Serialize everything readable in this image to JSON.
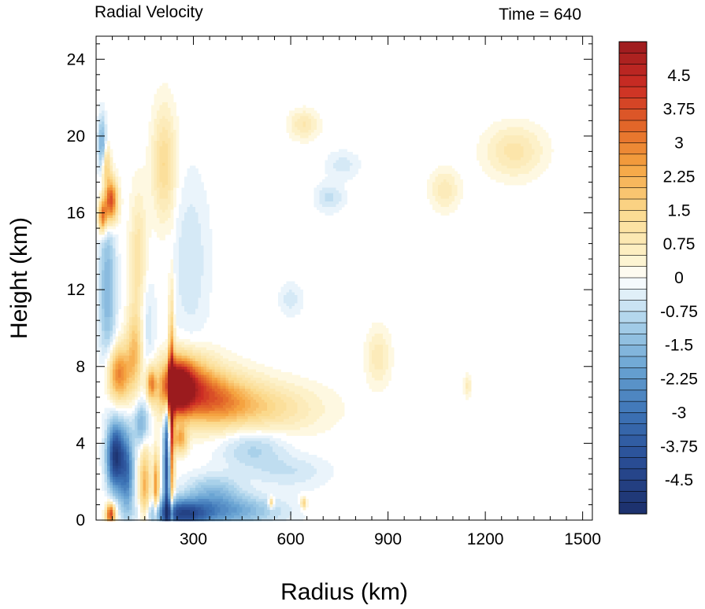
{
  "chart_data": {
    "type": "heatmap",
    "title_left": "Radial Velocity",
    "title_right": "Time = 640",
    "xlabel": "Radius (km)",
    "ylabel": "Height (km)",
    "x_ticks": [
      300,
      600,
      900,
      1200,
      1500
    ],
    "y_ticks": [
      0,
      4,
      8,
      12,
      16,
      20,
      24
    ],
    "xlim": [
      0,
      1530
    ],
    "ylim": [
      0,
      25.2
    ],
    "colorbar": {
      "min": -5.25,
      "max": 5.25,
      "step": 0.25,
      "tick_labels": [
        "4.5",
        "3.75",
        "3",
        "2.25",
        "1.5",
        "0.75",
        "0",
        "-0.75",
        "-1.5",
        "-2.25",
        "-3",
        "-3.75",
        "-4.5"
      ],
      "tick_values": [
        4.5,
        3.75,
        3,
        2.25,
        1.5,
        0.75,
        0,
        -0.75,
        -1.5,
        -2.25,
        -3,
        -3.75,
        -4.5
      ],
      "colors": [
        "#1b2f6a",
        "#2a4f97",
        "#3d74b6",
        "#6aa4d3",
        "#a9d1ea",
        "#deeef8",
        "#ffffff",
        "#fdf3cf",
        "#fbd98c",
        "#f5a340",
        "#e56e2a",
        "#cc2d24",
        "#9b1b1e"
      ],
      "color_stops": [
        -5.25,
        -4.0,
        -3.0,
        -2.0,
        -1.0,
        -0.4,
        0,
        0.4,
        1.5,
        2.5,
        3.25,
        4.25,
        5.25
      ]
    },
    "features": [
      {
        "x": 250,
        "y": 6.9,
        "value": 5.0,
        "sx": 30,
        "sy": 0.9
      },
      {
        "x": 280,
        "y": 7.0,
        "value": 3.2,
        "sx": 55,
        "sy": 1.1
      },
      {
        "x": 360,
        "y": 6.4,
        "value": 1.6,
        "sx": 60,
        "sy": 1.0
      },
      {
        "x": 520,
        "y": 5.8,
        "value": 1.2,
        "sx": 120,
        "sy": 0.9
      },
      {
        "x": 420,
        "y": 6.2,
        "value": 1.1,
        "sx": 80,
        "sy": 1.0
      },
      {
        "x": 232,
        "y": 5.0,
        "value": 4.5,
        "sx": 6,
        "sy": 3.8
      },
      {
        "x": 45,
        "y": 16.6,
        "value": 4.2,
        "sx": 14,
        "sy": 0.8
      },
      {
        "x": 20,
        "y": 15.8,
        "value": 3.2,
        "sx": 9,
        "sy": 0.6
      },
      {
        "x": 30,
        "y": 18.5,
        "value": 1.8,
        "sx": 10,
        "sy": 0.7
      },
      {
        "x": 70,
        "y": 7.6,
        "value": 3.0,
        "sx": 25,
        "sy": 1.0
      },
      {
        "x": 120,
        "y": 8.8,
        "value": 1.9,
        "sx": 18,
        "sy": 1.4
      },
      {
        "x": 170,
        "y": 7.1,
        "value": 2.6,
        "sx": 10,
        "sy": 0.6
      },
      {
        "x": 260,
        "y": 4.2,
        "value": 2.3,
        "sx": 15,
        "sy": 0.5
      },
      {
        "x": 45,
        "y": 0.3,
        "value": 4.0,
        "sx": 10,
        "sy": 0.4
      },
      {
        "x": 150,
        "y": 1.8,
        "value": 2.2,
        "sx": 12,
        "sy": 1.5
      },
      {
        "x": 185,
        "y": 1.8,
        "value": 2.8,
        "sx": 6,
        "sy": 1.2
      },
      {
        "x": 210,
        "y": 18.5,
        "value": 1.4,
        "sx": 25,
        "sy": 2.0
      },
      {
        "x": 130,
        "y": 13.2,
        "value": 1.2,
        "sx": 18,
        "sy": 2.5
      },
      {
        "x": 640,
        "y": 20.6,
        "value": 0.9,
        "sx": 30,
        "sy": 0.5
      },
      {
        "x": 870,
        "y": 8.5,
        "value": 0.8,
        "sx": 25,
        "sy": 1.0
      },
      {
        "x": 1290,
        "y": 19.2,
        "value": 1.0,
        "sx": 60,
        "sy": 0.9
      },
      {
        "x": 1075,
        "y": 17.2,
        "value": 0.8,
        "sx": 30,
        "sy": 0.7
      },
      {
        "x": 1145,
        "y": 7.0,
        "value": 0.7,
        "sx": 8,
        "sy": 0.4
      },
      {
        "x": 540,
        "y": 0.9,
        "value": 1.8,
        "sx": 6,
        "sy": 0.2
      },
      {
        "x": 640,
        "y": 0.9,
        "value": 1.8,
        "sx": 6,
        "sy": 0.2
      },
      {
        "x": 60,
        "y": 3.3,
        "value": -4.8,
        "sx": 18,
        "sy": 1.2
      },
      {
        "x": 95,
        "y": 2.5,
        "value": -2.8,
        "sx": 15,
        "sy": 1.5
      },
      {
        "x": 220,
        "y": 2.8,
        "value": -4.2,
        "sx": 8,
        "sy": 2.5
      },
      {
        "x": 260,
        "y": 0.3,
        "value": -3.6,
        "sx": 60,
        "sy": 0.5
      },
      {
        "x": 400,
        "y": 0.45,
        "value": -2.0,
        "sx": 110,
        "sy": 0.55
      },
      {
        "x": 360,
        "y": 1.5,
        "value": -1.3,
        "sx": 60,
        "sy": 0.6
      },
      {
        "x": 35,
        "y": 12.0,
        "value": -1.6,
        "sx": 18,
        "sy": 3.0
      },
      {
        "x": 18,
        "y": 19.5,
        "value": -2.0,
        "sx": 8,
        "sy": 1.0
      },
      {
        "x": 140,
        "y": 5.0,
        "value": -1.8,
        "sx": 16,
        "sy": 0.8
      },
      {
        "x": 150,
        "y": 10.0,
        "value": -0.8,
        "sx": 20,
        "sy": 2.0
      },
      {
        "x": 290,
        "y": 13.5,
        "value": -0.6,
        "sx": 40,
        "sy": 3.0
      },
      {
        "x": 480,
        "y": 3.8,
        "value": -1.0,
        "sx": 70,
        "sy": 0.8
      },
      {
        "x": 600,
        "y": 2.5,
        "value": -0.6,
        "sx": 80,
        "sy": 0.6
      },
      {
        "x": 720,
        "y": 16.8,
        "value": -0.7,
        "sx": 30,
        "sy": 0.5
      },
      {
        "x": 760,
        "y": 18.5,
        "value": -0.5,
        "sx": 35,
        "sy": 0.5
      },
      {
        "x": 600,
        "y": 11.5,
        "value": -0.5,
        "sx": 25,
        "sy": 0.6
      }
    ]
  }
}
